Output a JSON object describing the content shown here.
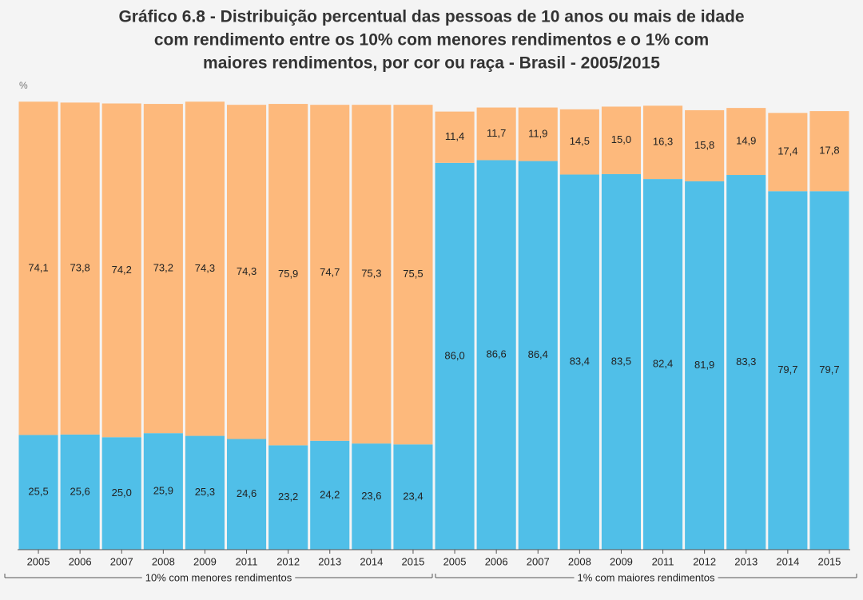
{
  "chart_data": {
    "type": "stacked_bar",
    "title": [
      "Gráfico 6.8 - Distribuição percentual das pessoas de 10 anos ou mais de idade",
      "com rendimento entre os 10%  com menores rendimentos e o 1% com",
      "maiores rendimentos, por cor ou raça - Brasil - 2005/2015"
    ],
    "y_label": "%",
    "ylim": [
      0,
      100
    ],
    "categories": [
      "2005",
      "2006",
      "2007",
      "2008",
      "2009",
      "2011",
      "2012",
      "2013",
      "2014",
      "2015",
      "2005",
      "2006",
      "2007",
      "2008",
      "2009",
      "2011",
      "2012",
      "2013",
      "2014",
      "2015"
    ],
    "group_labels": [
      "10% com menores rendimentos",
      "1% com maiores rendimentos"
    ],
    "series": [
      {
        "color": "#50bfe8",
        "values": [
          25.5,
          25.6,
          25.0,
          25.9,
          25.3,
          24.6,
          23.2,
          24.2,
          23.6,
          23.4,
          86.0,
          86.6,
          86.4,
          83.4,
          83.5,
          82.4,
          81.9,
          83.3,
          79.7,
          79.7
        ],
        "value_labels": [
          "25,5",
          "25,6",
          "25,0",
          "25,9",
          "25,3",
          "24,6",
          "23,2",
          "24,2",
          "23,6",
          "23,4",
          "86,0",
          "86,6",
          "86,4",
          "83,4",
          "83,5",
          "82,4",
          "81,9",
          "83,3",
          "79,7",
          "79,7"
        ]
      },
      {
        "color": "#fdb97c",
        "values": [
          74.1,
          73.8,
          74.2,
          73.2,
          74.3,
          74.3,
          75.9,
          74.7,
          75.3,
          75.5,
          11.4,
          11.7,
          11.9,
          14.5,
          15.0,
          16.3,
          15.8,
          14.9,
          17.4,
          17.8
        ],
        "value_labels": [
          "74,1",
          "73,8",
          "74,2",
          "73,2",
          "74,3",
          "74,3",
          "75,9",
          "74,7",
          "75,3",
          "75,5",
          "11,4",
          "11,7",
          "11,9",
          "14,5",
          "15,0",
          "16,3",
          "15,8",
          "14,9",
          "17,4",
          "17,8"
        ]
      }
    ]
  }
}
